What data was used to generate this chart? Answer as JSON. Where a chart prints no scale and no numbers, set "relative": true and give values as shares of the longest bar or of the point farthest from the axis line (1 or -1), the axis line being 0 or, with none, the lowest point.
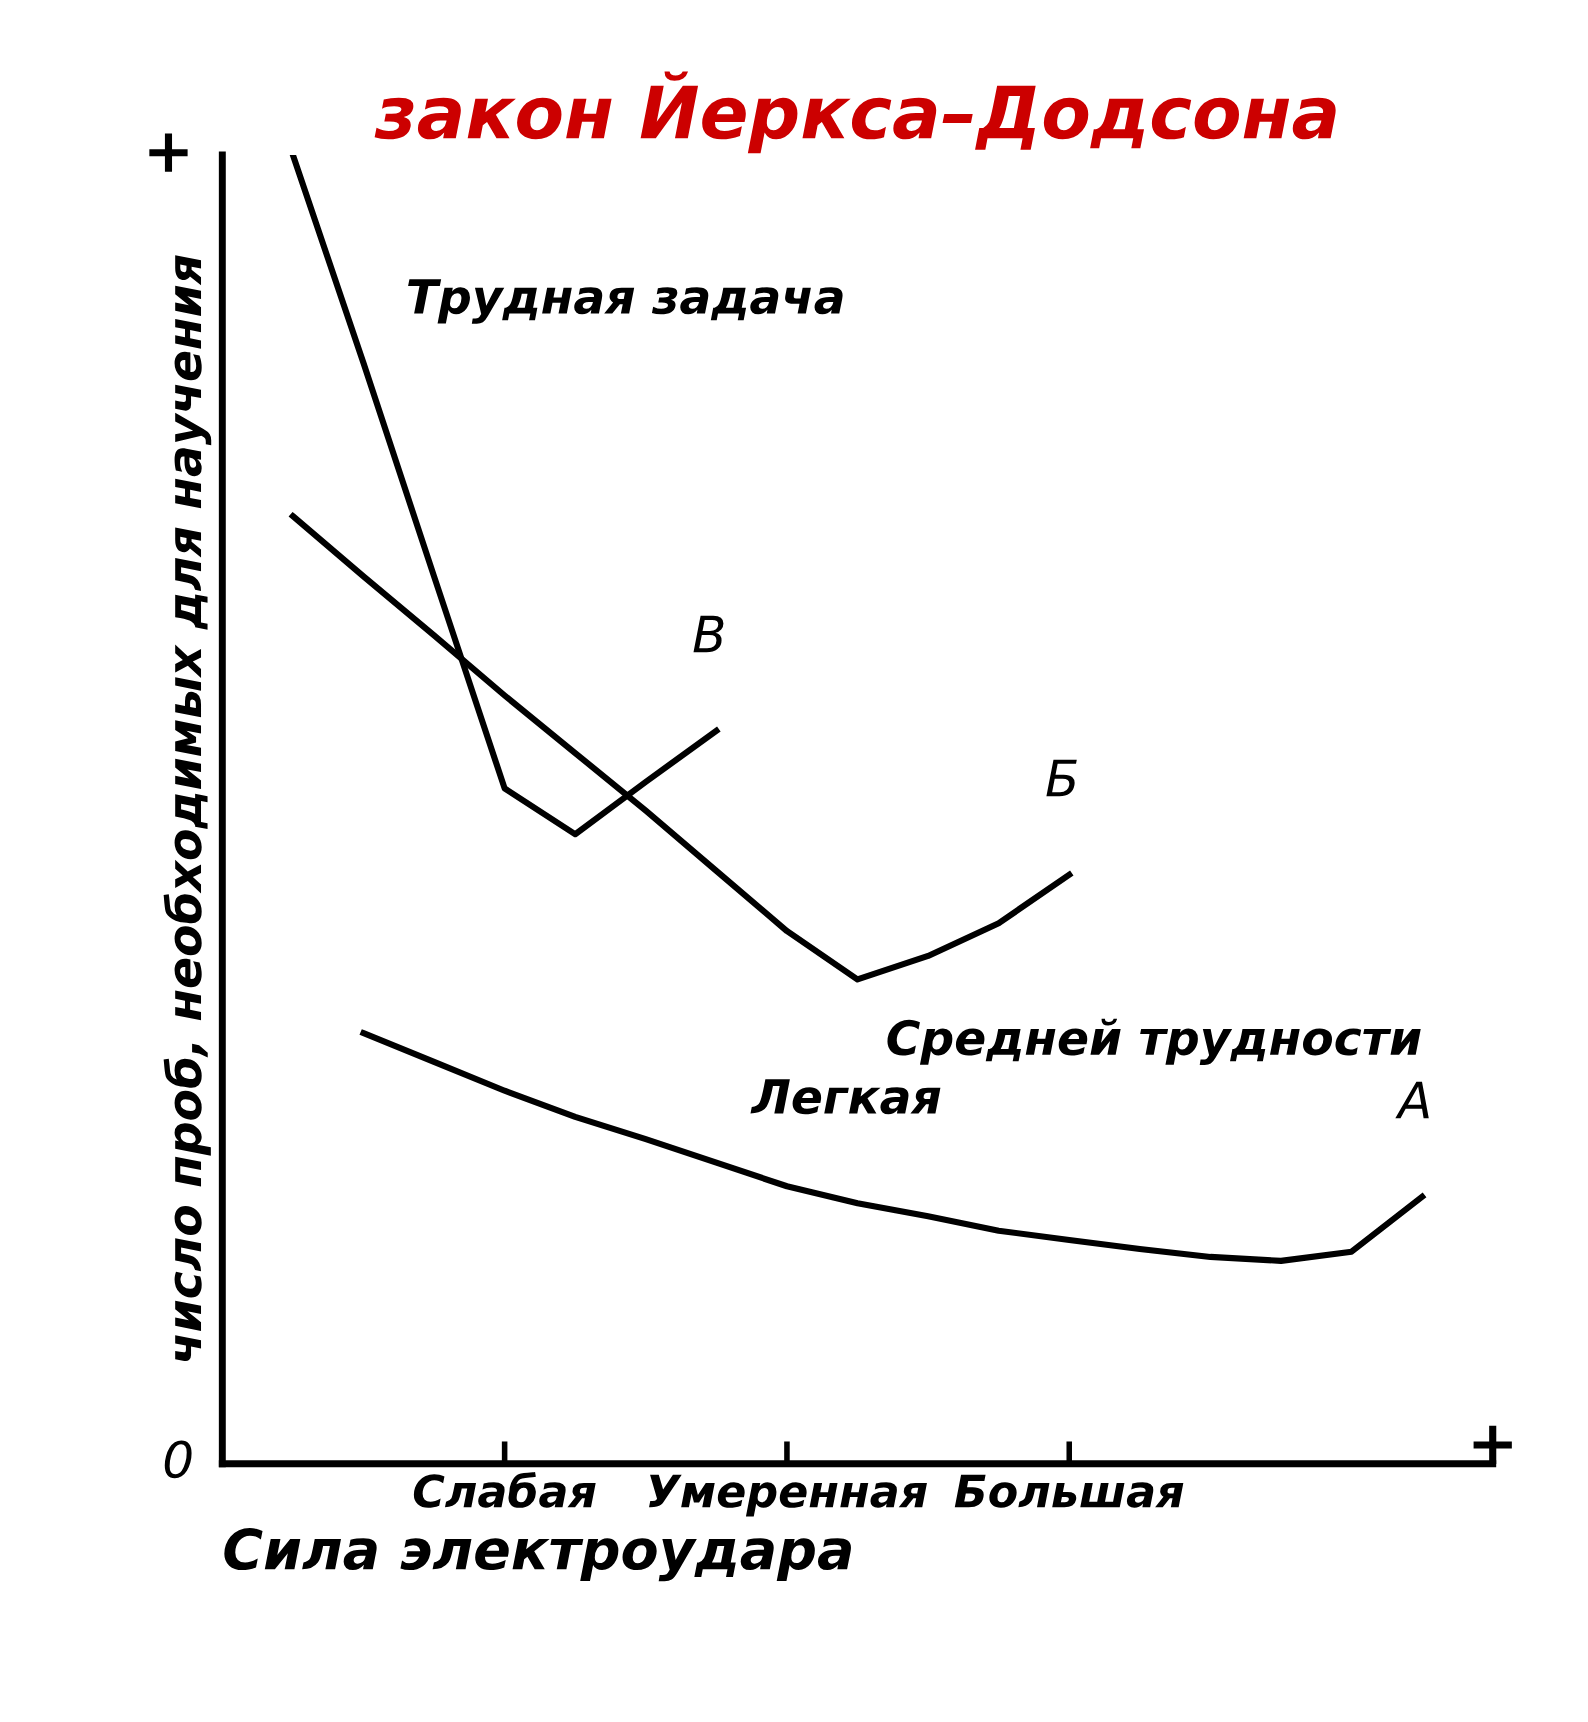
{
  "chart_data": {
    "type": "line",
    "relative": true,
    "title": "закон Йеркса–Додсона",
    "xlabel": "Сила электроудара",
    "ylabel": "число проб, необходимых для научения",
    "categories": [
      null,
      null,
      null,
      null,
      "Слабая",
      null,
      null,
      null,
      "Умеренная",
      null,
      null,
      null,
      "Большая",
      null,
      null,
      null,
      null,
      null,
      null
    ],
    "series": [
      {
        "name": "Трудная задача",
        "color": "#000000",
        "values": [
          null,
          1.0,
          0.841,
          0.678,
          0.516,
          0.481,
          0.521,
          0.56,
          null,
          null,
          null,
          null,
          null,
          null,
          null,
          null,
          null,
          null,
          null
        ]
      },
      {
        "name": "Средней трудности",
        "color": "#000000",
        "values": [
          null,
          0.724,
          0.678,
          0.633,
          0.587,
          0.543,
          0.499,
          0.453,
          0.407,
          0.37,
          0.388,
          0.413,
          0.45,
          null,
          null,
          null,
          null,
          null,
          null
        ]
      },
      {
        "name": "Легкая",
        "color": "#000000",
        "values": [
          null,
          null,
          0.329,
          0.307,
          0.285,
          0.265,
          0.248,
          0.23,
          0.212,
          0.199,
          0.189,
          0.178,
          0.171,
          0.164,
          0.158,
          0.155,
          0.162,
          0.204,
          null
        ]
      }
    ],
    "annotations": [
      "0",
      "+",
      "+",
      "В",
      "Б",
      "А"
    ],
    "grid": false,
    "legend": false,
    "marker": "none",
    "line_style": "solid"
  }
}
